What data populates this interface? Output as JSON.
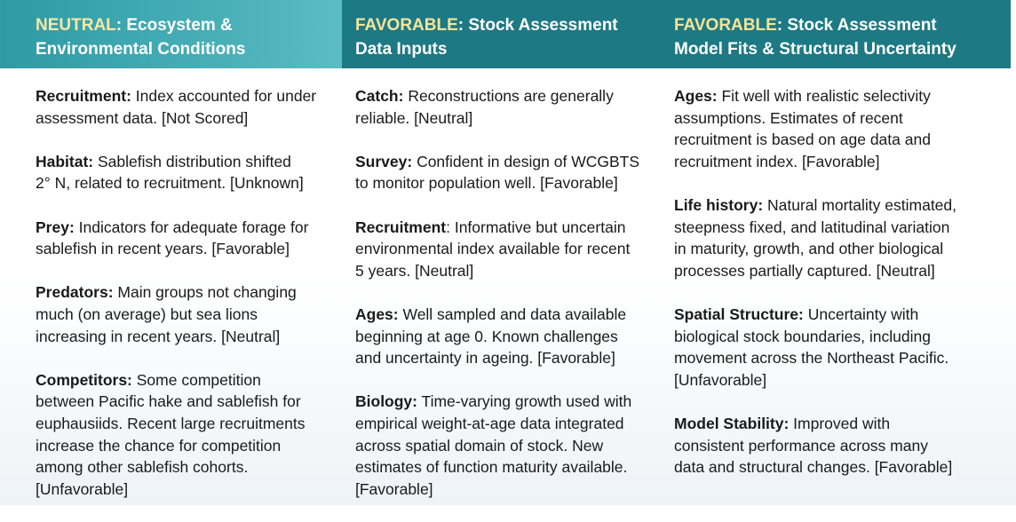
{
  "columns": [
    {
      "status": "NEUTRAL",
      "title_rest": ": Ecosystem &",
      "title_line2": "Environmental Conditions",
      "items": [
        {
          "label": "Recruitment:",
          "lines": [
            " Index accounted for under",
            "assessment data. [Not Scored]"
          ]
        },
        {
          "label": "Habitat:",
          "lines": [
            " Sablefish distribution shifted",
            "2° N, related to recruitment. [Unknown]"
          ]
        },
        {
          "label": "Prey:",
          "lines": [
            " Indicators for adequate forage for",
            "sablefish in recent years. [Favorable]"
          ]
        },
        {
          "label": "Predators:",
          "lines": [
            " Main groups not changing",
            "much (on average) but sea lions",
            "increasing in recent years. [Neutral]"
          ]
        },
        {
          "label": "Competitors:",
          "lines": [
            " Some competition",
            "between Pacific hake and sablefish for",
            "euphausiids. Recent large recruitments",
            "increase the chance for competition",
            "among other sablefish cohorts.",
            "[Unfavorable]"
          ]
        }
      ]
    },
    {
      "status": "FAVORABLE",
      "title_rest": ": Stock Assessment",
      "title_line2": "Data Inputs",
      "items": [
        {
          "label": "Catch:",
          "lines": [
            " Reconstructions are generally",
            "reliable. [Neutral]"
          ]
        },
        {
          "label": "Survey:",
          "lines": [
            " Confident in design of WCGBTS",
            "to monitor population well. [Favorable]"
          ]
        },
        {
          "label": "Recruitment",
          "lines": [
            ": Informative but uncertain",
            "environmental index available for recent",
            "5 years. [Neutral]"
          ]
        },
        {
          "label": "Ages:",
          "lines": [
            " Well sampled and data available",
            "beginning at age 0. Known challenges",
            "and uncertainty in ageing. [Favorable]"
          ]
        },
        {
          "label": "Biology:",
          "lines": [
            " Time-varying growth used with",
            "empirical weight-at-age data integrated",
            "across spatial domain of stock. New",
            "estimates of function maturity available.",
            "[Favorable]"
          ]
        }
      ]
    },
    {
      "status": "FAVORABLE",
      "title_rest": ": Stock Assessment",
      "title_line2": "Model Fits &  Structural Uncertainty",
      "items": [
        {
          "label": "Ages:",
          "lines": [
            " Fit well with realistic selectivity",
            "assumptions. Estimates of recent",
            "recruitment is based on age data and",
            "recruitment index. [Favorable]"
          ]
        },
        {
          "label": "Life history:",
          "lines": [
            " Natural mortality estimated,",
            "steepness fixed, and latitudinal variation",
            "in maturity, growth, and other biological",
            "processes partially captured. [Neutral]"
          ]
        },
        {
          "label": "Spatial Structure:",
          "lines": [
            " Uncertainty with",
            "biological stock boundaries, including",
            "movement across the Northeast Pacific.",
            "[Unfavorable]"
          ]
        },
        {
          "label": "Model Stability:",
          "lines": [
            " Improved with",
            "consistent performance across many",
            "data and structural changes. [Favorable]"
          ]
        }
      ]
    }
  ]
}
